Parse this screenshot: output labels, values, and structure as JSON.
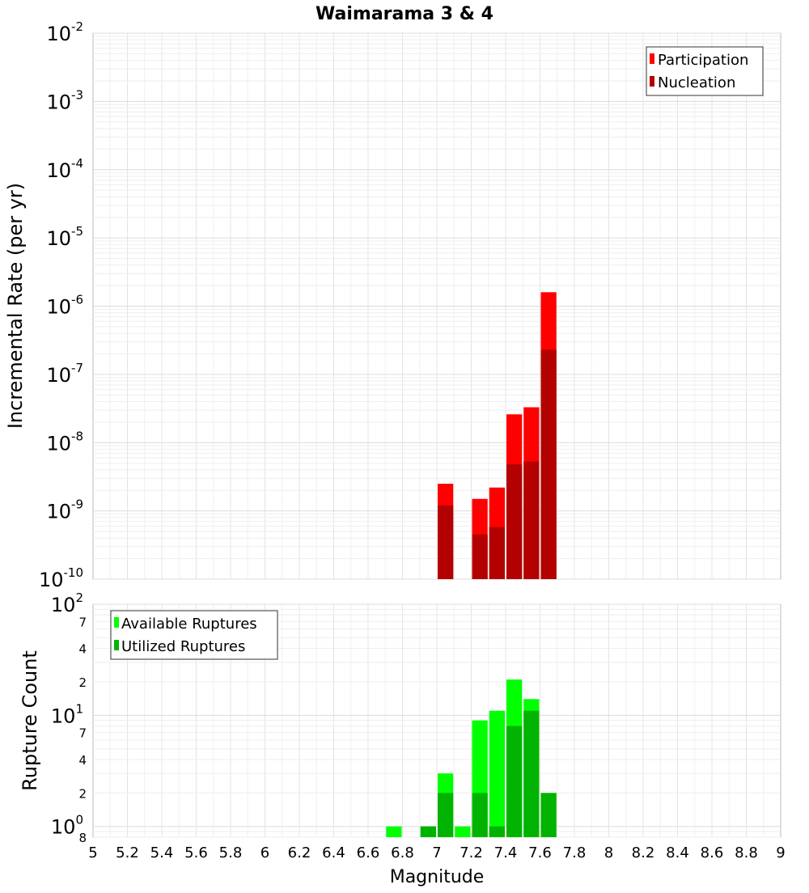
{
  "title": "Waimarama 3 & 4",
  "xlabel": "Magnitude",
  "colors": {
    "participation": "#ff0000",
    "nucleation": "#b30000",
    "available": "#00ff00",
    "utilized": "#00b300"
  },
  "chart_data": [
    {
      "type": "bar",
      "panel": "top",
      "ylabel": "Incremental Rate (per yr)",
      "yscale": "log",
      "ylim": [
        1e-10,
        0.01
      ],
      "xlim": [
        5,
        9
      ],
      "grid": true,
      "legend_position": "top-right",
      "y_tick_labels": [
        {
          "base": "10",
          "exp": "-10"
        },
        {
          "base": "10",
          "exp": "-9"
        },
        {
          "base": "10",
          "exp": "-8"
        },
        {
          "base": "10",
          "exp": "-7"
        },
        {
          "base": "10",
          "exp": "-6"
        },
        {
          "base": "10",
          "exp": "-5"
        },
        {
          "base": "10",
          "exp": "-4"
        },
        {
          "base": "10",
          "exp": "-3"
        },
        {
          "base": "10",
          "exp": "-2"
        }
      ],
      "series": [
        {
          "name": "Participation",
          "x": [
            7.05,
            7.25,
            7.35,
            7.45,
            7.55,
            7.65
          ],
          "values": [
            2.5e-09,
            1.5e-09,
            2.2e-09,
            2.6e-08,
            3.3e-08,
            1.6e-06
          ]
        },
        {
          "name": "Nucleation",
          "x": [
            7.05,
            7.25,
            7.35,
            7.45,
            7.55,
            7.65
          ],
          "values": [
            1.2e-09,
            4.5e-10,
            5.8e-10,
            4.8e-09,
            5.3e-09,
            2.3e-07
          ]
        }
      ]
    },
    {
      "type": "bar",
      "panel": "bottom",
      "ylabel": "Rupture Count",
      "yscale": "log",
      "ylim": [
        0.8,
        100
      ],
      "xlim": [
        5,
        9
      ],
      "grid": true,
      "legend_position": "top-left",
      "y_tick_labels": [
        {
          "base": "10",
          "exp": "0"
        },
        {
          "base": "10",
          "exp": "1"
        },
        {
          "base": "10",
          "exp": "2"
        }
      ],
      "y_minor_labels": [
        "8",
        "2",
        "4",
        "7",
        "2",
        "4",
        "7"
      ],
      "series": [
        {
          "name": "Available Ruptures",
          "x": [
            6.75,
            6.95,
            7.05,
            7.15,
            7.25,
            7.35,
            7.45,
            7.55,
            7.65
          ],
          "values": [
            1,
            1,
            3,
            1,
            9,
            11,
            21,
            14,
            2
          ]
        },
        {
          "name": "Utilized Ruptures",
          "x": [
            6.95,
            7.05,
            7.25,
            7.35,
            7.45,
            7.55,
            7.65
          ],
          "values": [
            1,
            2,
            2,
            1,
            8,
            11,
            2
          ]
        }
      ]
    }
  ],
  "x_tick_labels": [
    "5",
    "5.2",
    "5.4",
    "5.6",
    "5.8",
    "6",
    "6.2",
    "6.4",
    "6.6",
    "6.8",
    "7",
    "7.2",
    "7.4",
    "7.6",
    "7.8",
    "8",
    "8.2",
    "8.4",
    "8.6",
    "8.8",
    "9"
  ]
}
